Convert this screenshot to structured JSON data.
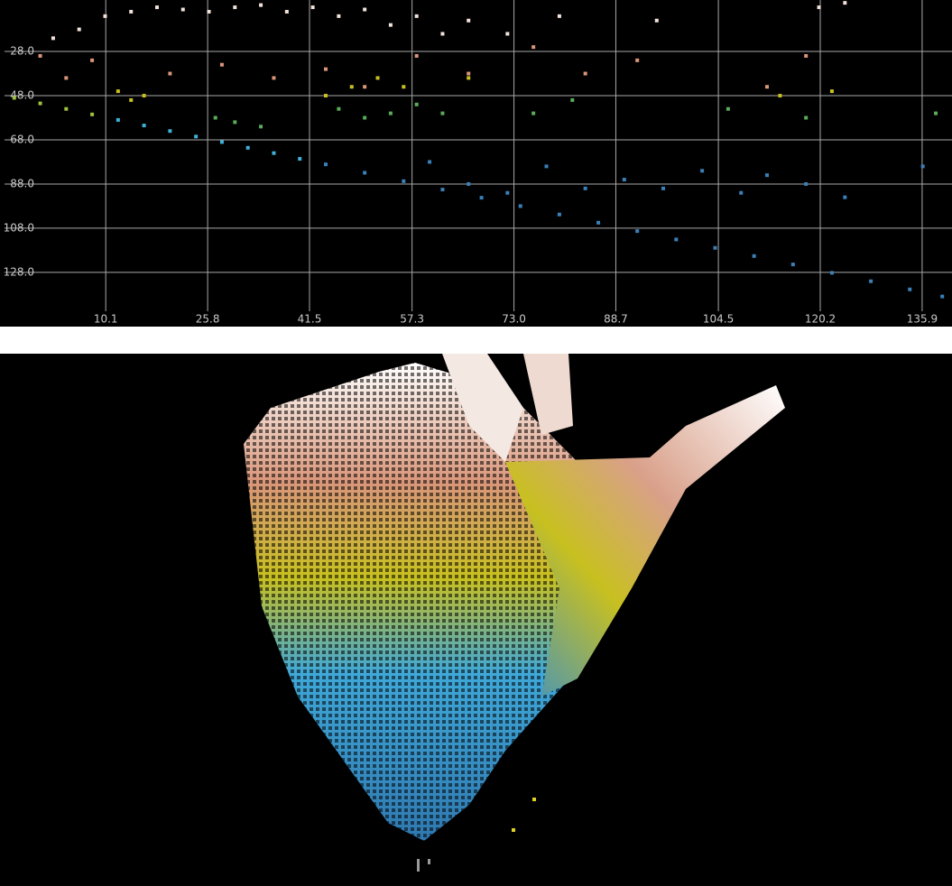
{
  "chart_data": {
    "type": "scatter",
    "grid": true,
    "xlim": [
      -5.5,
      140.5
    ],
    "ylim": [
      145.6,
      4.7
    ],
    "xticks": [
      10.1,
      25.8,
      41.5,
      57.3,
      {
        "value": 73,
        "label": "73.0"
      },
      88.7,
      104.5,
      120.2,
      135.9
    ],
    "yticks": [
      {
        "value": 28,
        "label": "28.0"
      },
      {
        "value": 48,
        "label": "48.0"
      },
      {
        "value": 68,
        "label": "68.0"
      },
      {
        "value": 88,
        "label": "88.0"
      },
      {
        "value": 108,
        "label": "108.0"
      },
      {
        "value": 128,
        "label": "128.0"
      }
    ],
    "series": [
      {
        "color": "#f2e2da",
        "x": [
          2,
          6,
          10,
          14,
          18,
          22,
          26,
          30,
          34,
          38,
          42,
          46,
          50,
          54,
          58,
          62,
          66,
          72,
          80,
          95,
          120,
          124
        ],
        "values": [
          22,
          18,
          12,
          10,
          8,
          9,
          10,
          8,
          7,
          10,
          8,
          12,
          9,
          16,
          12,
          20,
          14,
          20,
          12,
          14,
          8,
          6
        ]
      },
      {
        "color": "#d9967a",
        "x": [
          0,
          4,
          8,
          20,
          28,
          36,
          44,
          50,
          58,
          66,
          76,
          84,
          92,
          112,
          118
        ],
        "values": [
          30,
          40,
          32,
          38,
          34,
          40,
          36,
          44,
          30,
          38,
          26,
          38,
          32,
          44,
          30
        ]
      },
      {
        "color": "#c8c020",
        "x": [
          12,
          14,
          16,
          44,
          48,
          52,
          56,
          66,
          114,
          122
        ],
        "values": [
          46,
          50,
          48,
          48,
          44,
          40,
          44,
          40,
          48,
          46
        ]
      },
      {
        "color": "#5aab5a",
        "x": [
          27,
          30,
          34,
          46,
          50,
          54,
          58,
          62,
          76,
          82,
          106,
          118,
          138
        ],
        "values": [
          58,
          60,
          62,
          54,
          58,
          56,
          52,
          56,
          56,
          50,
          54,
          58,
          56
        ]
      },
      {
        "color": "#a0c040",
        "x": [
          -4,
          0,
          4,
          8
        ],
        "values": [
          49,
          51.5,
          54,
          56.5
        ]
      },
      {
        "color": "#40b0d8",
        "x": [
          12,
          16,
          20,
          24,
          28,
          32,
          36,
          40
        ],
        "values": [
          59,
          61.5,
          64,
          66.5,
          69,
          71.6,
          74,
          76.6
        ]
      },
      {
        "color": "#3a80b8",
        "x": [
          44,
          50,
          56,
          62,
          68,
          74,
          80,
          86,
          92,
          98,
          104,
          110,
          116,
          122,
          128,
          134,
          139
        ],
        "values": [
          79.1,
          82.9,
          86.7,
          90.5,
          94.2,
          98,
          101.8,
          105.5,
          109.3,
          113.1,
          116.9,
          120.6,
          124.4,
          128.2,
          132,
          135.7,
          138.9
        ]
      },
      {
        "color": "#3a80b8",
        "x": [
          60,
          66,
          72,
          78,
          84,
          90,
          96,
          102,
          108,
          112,
          118,
          124,
          136
        ],
        "values": [
          78,
          88,
          92,
          80,
          90,
          86,
          90,
          82,
          92,
          84,
          88,
          94,
          80
        ]
      }
    ]
  }
}
